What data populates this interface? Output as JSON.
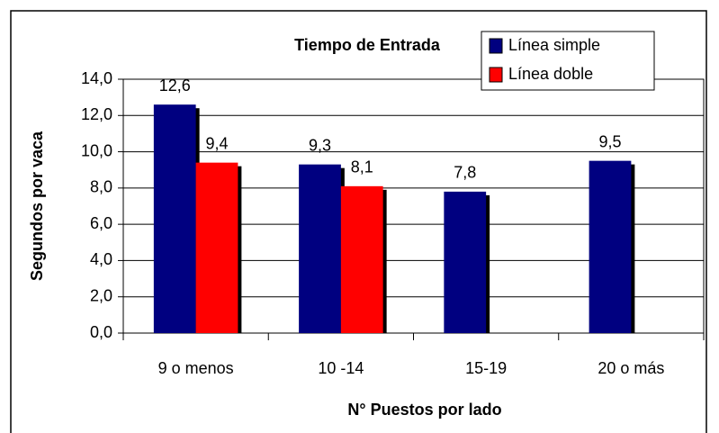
{
  "chart_data": {
    "type": "bar",
    "title": "Tiempo de Entrada",
    "xlabel": "N° Puestos por lado",
    "ylabel": "Segundos por vaca",
    "categories": [
      "9 o menos",
      "10 -14",
      "15-19",
      "20 o más"
    ],
    "series": [
      {
        "name": "Línea simple",
        "color": "#000080",
        "values": [
          12.6,
          9.3,
          7.8,
          9.5
        ],
        "value_labels": [
          "12,6",
          "9,3",
          "7,8",
          "9,5"
        ]
      },
      {
        "name": "Línea doble",
        "color": "#ff0000",
        "values": [
          9.4,
          8.1,
          null,
          null
        ],
        "value_labels": [
          "9,4",
          "8,1",
          null,
          null
        ]
      }
    ],
    "ylim": [
      0,
      14
    ],
    "yticks": [
      {
        "value": 0,
        "label": "0,0"
      },
      {
        "value": 2,
        "label": "2,0"
      },
      {
        "value": 4,
        "label": "4,0"
      },
      {
        "value": 6,
        "label": "6,0"
      },
      {
        "value": 8,
        "label": "8,0"
      },
      {
        "value": 10,
        "label": "10,0"
      },
      {
        "value": 12,
        "label": "12,0"
      },
      {
        "value": 14,
        "label": "14,0"
      }
    ],
    "grid": true,
    "legend": "top-right"
  }
}
